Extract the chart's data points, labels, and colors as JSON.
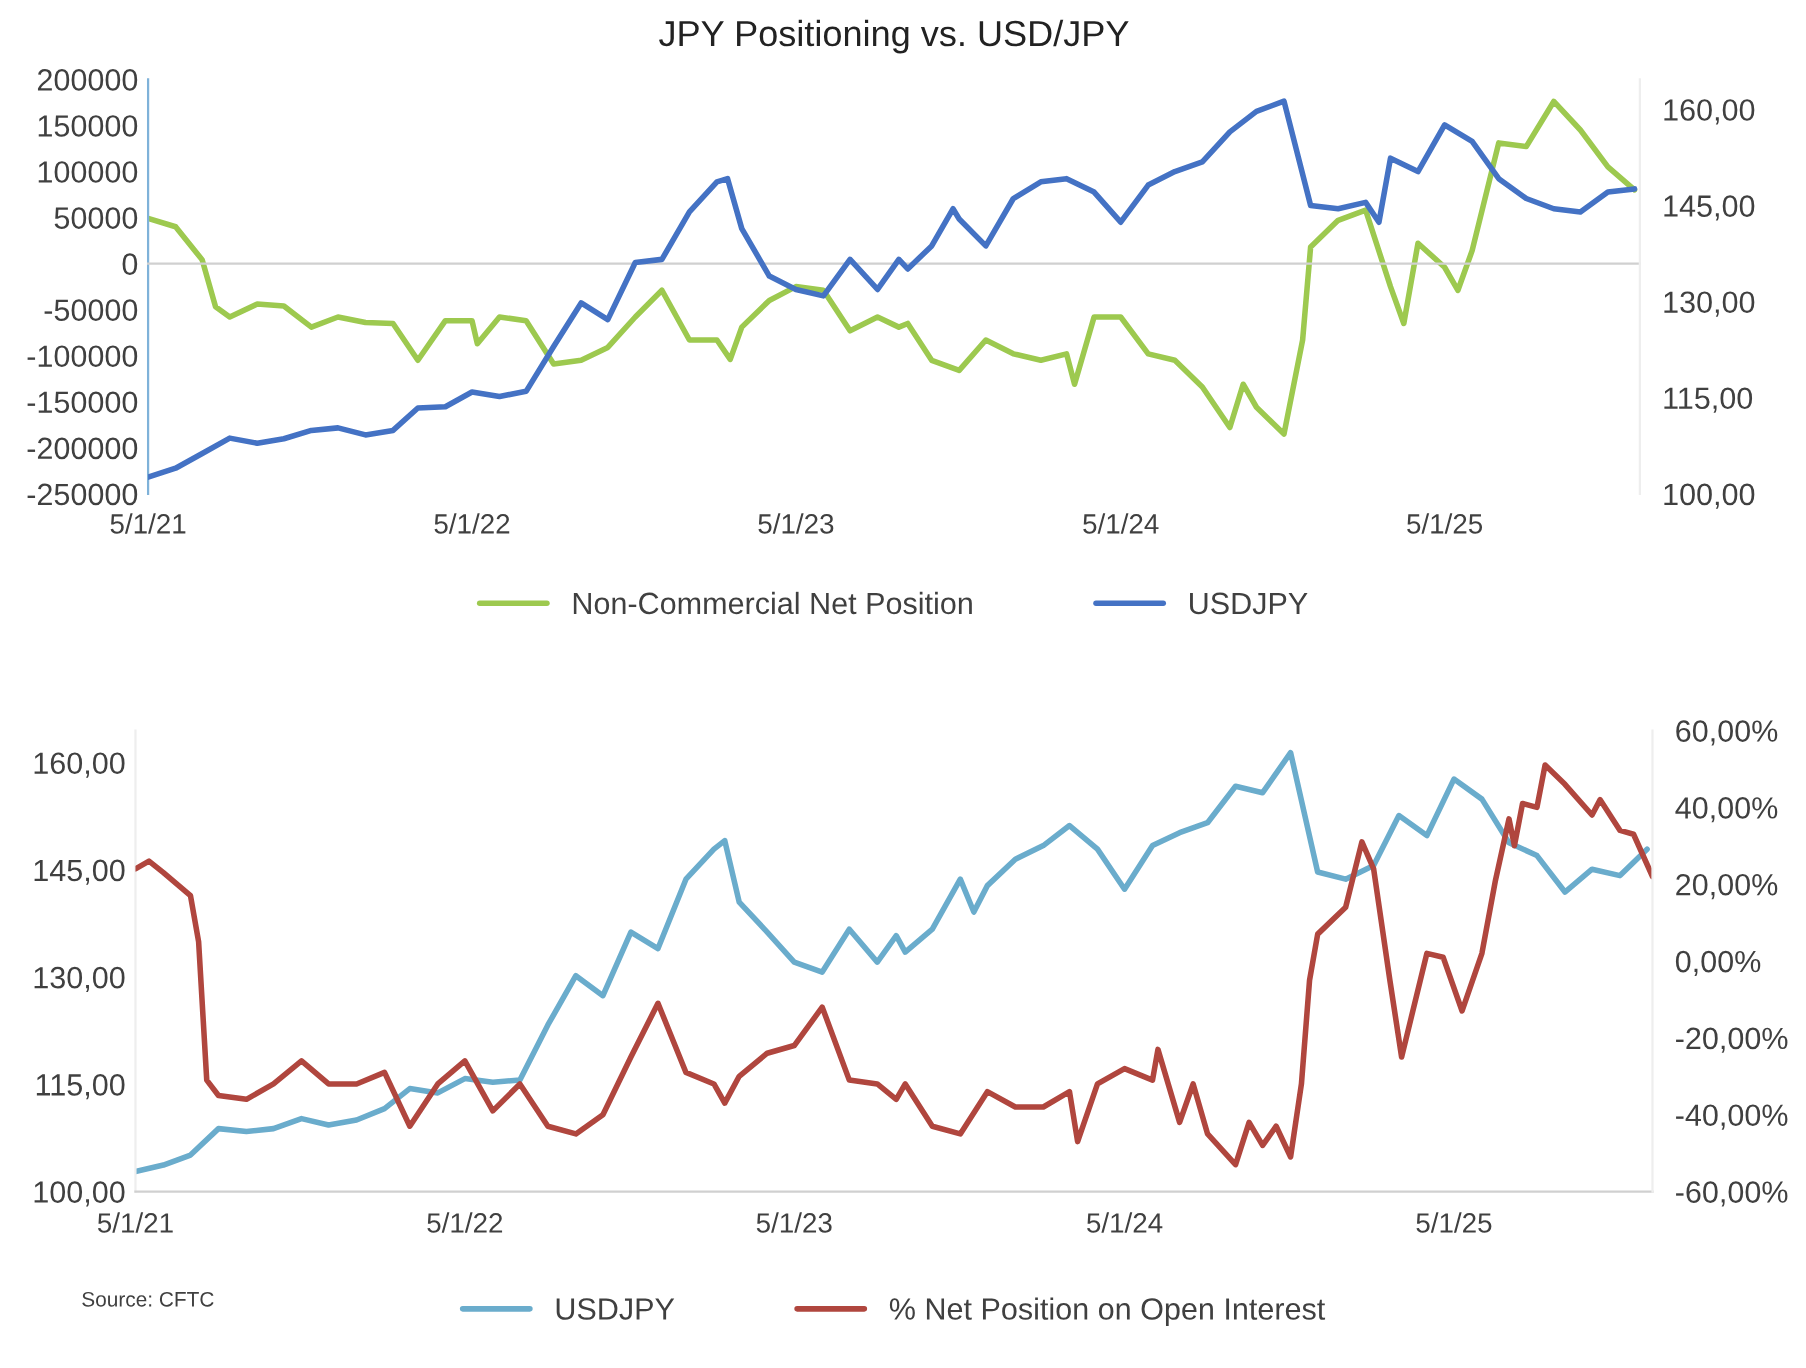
{
  "chart_data": [
    {
      "type": "line",
      "title": "JPY Positioning vs. USD/JPY",
      "legend": "bottom",
      "xlim": [
        "2021-05-01",
        "2025-12-07"
      ],
      "xticks": [
        {
          "value": "2021-05-01",
          "label": "5/1/21"
        },
        {
          "value": "2022-05-01",
          "label": "5/1/22"
        },
        {
          "value": "2023-05-01",
          "label": "5/1/23"
        },
        {
          "value": "2024-05-01",
          "label": "5/1/24"
        },
        {
          "value": "2025-05-01",
          "label": "5/1/25"
        }
      ],
      "ylim": [
        -250000,
        200000
      ],
      "yticks": [
        -250000,
        -200000,
        -150000,
        -100000,
        -50000,
        0,
        50000,
        100000,
        150000,
        200000
      ],
      "y2lim": [
        100,
        164.7
      ],
      "y2ticks": [
        {
          "value": 100,
          "label": "100,00"
        },
        {
          "value": 115,
          "label": "115,00"
        },
        {
          "value": 130,
          "label": "130,00"
        },
        {
          "value": 145,
          "label": "145,00"
        },
        {
          "value": 160,
          "label": "160,00"
        }
      ],
      "series": [
        {
          "name": "Non-Commercial Net Position",
          "color": "#9dc94f",
          "x": [
            "2021-05-01",
            "2021-06-01",
            "2021-07-01",
            "2021-07-16",
            "2021-08-01",
            "2021-09-01",
            "2021-10-01",
            "2021-11-01",
            "2021-12-01",
            "2022-01-01",
            "2022-02-01",
            "2022-03-01",
            "2022-04-01",
            "2022-05-01",
            "2022-05-07",
            "2022-06-01",
            "2022-07-01",
            "2022-08-01",
            "2022-09-01",
            "2022-10-01",
            "2022-11-01",
            "2022-12-01",
            "2023-01-01",
            "2023-02-01",
            "2023-02-16",
            "2023-03-01",
            "2023-04-01",
            "2023-05-01",
            "2023-06-01",
            "2023-07-01",
            "2023-08-01",
            "2023-08-25",
            "2023-09-04",
            "2023-10-01",
            "2023-11-01",
            "2023-12-01",
            "2024-01-01",
            "2024-02-01",
            "2024-03-01",
            "2024-03-10",
            "2024-04-01",
            "2024-05-01",
            "2024-06-01",
            "2024-07-01",
            "2024-08-01",
            "2024-09-01",
            "2024-09-16",
            "2024-10-01",
            "2024-11-01",
            "2024-11-22",
            "2024-12-01",
            "2025-01-01",
            "2025-02-01",
            "2025-03-01",
            "2025-03-16",
            "2025-04-01",
            "2025-05-01",
            "2025-05-16",
            "2025-06-01",
            "2025-07-01",
            "2025-08-01",
            "2025-09-01",
            "2025-10-01",
            "2025-11-01",
            "2025-12-01"
          ],
          "values": [
            49000,
            40000,
            4000,
            -47000,
            -58000,
            -44000,
            -46000,
            -69000,
            -58000,
            -64000,
            -65000,
            -105000,
            -62000,
            -62000,
            -87000,
            -58000,
            -62000,
            -109000,
            -105000,
            -91000,
            -58000,
            -29000,
            -83000,
            -83000,
            -104000,
            -69000,
            -40000,
            -25000,
            -29000,
            -73000,
            -58000,
            -69000,
            -65000,
            -105000,
            -116000,
            -83000,
            -98000,
            -105000,
            -98000,
            -131000,
            -58000,
            -58000,
            -98000,
            -105000,
            -134000,
            -178000,
            -131000,
            -156000,
            -185000,
            -83000,
            18000,
            47000,
            58000,
            -25000,
            -65000,
            22000,
            -4000,
            -29000,
            14000,
            131000,
            127000,
            176000,
            145000,
            105000,
            80000
          ]
        },
        {
          "name": "USDJPY",
          "color": "#4472c4",
          "axis": "y2",
          "x": [
            "2021-05-01",
            "2021-06-01",
            "2021-07-01",
            "2021-08-01",
            "2021-09-01",
            "2021-10-01",
            "2021-11-01",
            "2021-12-01",
            "2022-01-01",
            "2022-02-01",
            "2022-03-01",
            "2022-04-01",
            "2022-05-01",
            "2022-06-01",
            "2022-07-01",
            "2022-08-01",
            "2022-09-01",
            "2022-10-01",
            "2022-11-01",
            "2022-12-01",
            "2023-01-01",
            "2023-02-01",
            "2023-02-13",
            "2023-03-01",
            "2023-04-01",
            "2023-05-01",
            "2023-06-01",
            "2023-07-01",
            "2023-08-01",
            "2023-08-25",
            "2023-09-04",
            "2023-10-01",
            "2023-10-25",
            "2023-11-01",
            "2023-12-01",
            "2024-01-01",
            "2024-02-01",
            "2024-03-01",
            "2024-04-01",
            "2024-05-01",
            "2024-06-01",
            "2024-07-01",
            "2024-08-01",
            "2024-09-01",
            "2024-10-01",
            "2024-11-01",
            "2024-12-01",
            "2025-01-01",
            "2025-02-01",
            "2025-02-16",
            "2025-03-01",
            "2025-04-01",
            "2025-05-01",
            "2025-06-01",
            "2025-07-01",
            "2025-08-01",
            "2025-09-01",
            "2025-10-01",
            "2025-11-01",
            "2025-12-01"
          ],
          "values": [
            102.6,
            104.0,
            106.3,
            108.7,
            107.9,
            108.6,
            109.9,
            110.3,
            109.2,
            109.9,
            113.4,
            113.6,
            115.9,
            115.2,
            116.0,
            123.0,
            129.8,
            127.2,
            136.1,
            136.6,
            144.0,
            148.7,
            149.2,
            141.4,
            134.0,
            131.9,
            130.9,
            136.6,
            131.9,
            136.6,
            135.1,
            138.7,
            144.5,
            142.9,
            138.7,
            146.1,
            148.7,
            149.2,
            147.1,
            142.4,
            148.2,
            150.3,
            151.8,
            156.5,
            159.7,
            161.3,
            145.0,
            144.5,
            145.5,
            142.4,
            152.4,
            150.3,
            157.6,
            155.0,
            149.2,
            146.1,
            144.5,
            144.0,
            147.1,
            147.6
          ]
        }
      ]
    },
    {
      "type": "line",
      "legend": "bottom",
      "annotations": [
        "Source: CFTC"
      ],
      "xlim": [
        "2021-05-01",
        "2025-12-07"
      ],
      "xticks": [
        {
          "value": "2021-05-01",
          "label": "5/1/21"
        },
        {
          "value": "2022-05-01",
          "label": "5/1/22"
        },
        {
          "value": "2023-05-01",
          "label": "5/1/23"
        },
        {
          "value": "2024-05-01",
          "label": "5/1/24"
        },
        {
          "value": "2025-05-01",
          "label": "5/1/25"
        }
      ],
      "ylim": [
        100,
        164.5
      ],
      "yticks": [
        {
          "value": 100,
          "label": "100,00"
        },
        {
          "value": 115,
          "label": "115,00"
        },
        {
          "value": 130,
          "label": "130,00"
        },
        {
          "value": 145,
          "label": "145,00"
        },
        {
          "value": 160,
          "label": "160,00"
        }
      ],
      "y2lim": [
        -60,
        60
      ],
      "y2ticks": [
        {
          "value": -60,
          "label": "-60,00%"
        },
        {
          "value": -40,
          "label": "-40,00%"
        },
        {
          "value": -20,
          "label": "-20,00%"
        },
        {
          "value": 0,
          "label": "0,00%"
        },
        {
          "value": 20,
          "label": "20,00%"
        },
        {
          "value": 40,
          "label": "40,00%"
        },
        {
          "value": 60,
          "label": "60,00%"
        }
      ],
      "series": [
        {
          "name": "USDJPY",
          "color": "#6aaccc",
          "x": [
            "2021-05-01",
            "2021-06-01",
            "2021-07-01",
            "2021-08-01",
            "2021-09-01",
            "2021-10-01",
            "2021-11-01",
            "2021-12-01",
            "2022-01-01",
            "2022-02-01",
            "2022-03-01",
            "2022-04-01",
            "2022-05-01",
            "2022-06-01",
            "2022-07-01",
            "2022-08-01",
            "2022-09-01",
            "2022-10-01",
            "2022-11-01",
            "2022-12-01",
            "2023-01-01",
            "2023-02-01",
            "2023-02-13",
            "2023-03-01",
            "2023-04-01",
            "2023-05-01",
            "2023-06-01",
            "2023-07-01",
            "2023-08-01",
            "2023-08-22",
            "2023-09-01",
            "2023-10-01",
            "2023-11-01",
            "2023-11-16",
            "2023-12-01",
            "2024-01-01",
            "2024-02-01",
            "2024-03-01",
            "2024-04-01",
            "2024-05-01",
            "2024-06-01",
            "2024-07-01",
            "2024-08-01",
            "2024-09-01",
            "2024-10-01",
            "2024-11-01",
            "2024-12-01",
            "2025-01-01",
            "2025-02-01",
            "2025-03-01",
            "2025-04-01",
            "2025-05-01",
            "2025-06-01",
            "2025-07-01",
            "2025-08-01",
            "2025-09-01",
            "2025-10-01",
            "2025-11-01",
            "2025-12-01"
          ],
          "values": [
            102.8,
            103.7,
            105.1,
            108.8,
            108.4,
            108.8,
            110.2,
            109.3,
            110.0,
            111.6,
            114.4,
            113.8,
            115.8,
            115.3,
            115.6,
            123.3,
            130.2,
            127.4,
            136.3,
            134.0,
            143.7,
            147.9,
            149.1,
            140.5,
            136.3,
            132.1,
            130.7,
            136.7,
            132.1,
            135.8,
            133.5,
            136.7,
            143.7,
            139.1,
            142.8,
            146.5,
            148.4,
            151.2,
            147.9,
            142.3,
            148.4,
            150.2,
            151.6,
            156.7,
            155.8,
            161.4,
            144.7,
            143.7,
            145.6,
            152.6,
            149.8,
            157.7,
            154.9,
            148.8,
            147.0,
            141.9,
            145.1,
            144.2,
            147.9
          ]
        },
        {
          "name": "% Net Position on Open Interest",
          "color": "#b0463e",
          "axis": "y2",
          "x": [
            "2021-05-01",
            "2021-05-16",
            "2021-06-01",
            "2021-07-01",
            "2021-07-10",
            "2021-07-19",
            "2021-08-01",
            "2021-09-01",
            "2021-10-01",
            "2021-11-01",
            "2021-12-01",
            "2022-01-01",
            "2022-02-01",
            "2022-03-01",
            "2022-04-01",
            "2022-05-01",
            "2022-06-01",
            "2022-07-01",
            "2022-08-01",
            "2022-09-01",
            "2022-10-01",
            "2022-11-01",
            "2022-12-01",
            "2023-01-01",
            "2023-02-01",
            "2023-02-13",
            "2023-03-01",
            "2023-04-01",
            "2023-05-01",
            "2023-06-01",
            "2023-07-01",
            "2023-08-01",
            "2023-08-22",
            "2023-09-01",
            "2023-10-01",
            "2023-11-01",
            "2023-12-01",
            "2024-01-01",
            "2024-02-01",
            "2024-03-01",
            "2024-03-10",
            "2024-04-01",
            "2024-05-01",
            "2024-06-01",
            "2024-06-07",
            "2024-07-01",
            "2024-07-16",
            "2024-08-01",
            "2024-09-01",
            "2024-09-16",
            "2024-10-01",
            "2024-10-16",
            "2024-11-01",
            "2024-11-13",
            "2024-11-22",
            "2024-12-01",
            "2025-01-01",
            "2025-01-19",
            "2025-02-01",
            "2025-02-19",
            "2025-03-04",
            "2025-04-01",
            "2025-04-19",
            "2025-05-10",
            "2025-06-01",
            "2025-06-16",
            "2025-07-01",
            "2025-07-07",
            "2025-07-16",
            "2025-08-01",
            "2025-08-10",
            "2025-09-01",
            "2025-10-01",
            "2025-10-10",
            "2025-11-01",
            "2025-11-16",
            "2025-12-07"
          ],
          "values": [
            24,
            26,
            23,
            17,
            5,
            -31,
            -35,
            -36,
            -32,
            -26,
            -32,
            -32,
            -29,
            -43,
            -32,
            -26,
            -39,
            -32,
            -43,
            -45,
            -40,
            -25,
            -11,
            -29,
            -32,
            -37,
            -30,
            -24,
            -22,
            -12,
            -31,
            -32,
            -36,
            -32,
            -43,
            -45,
            -34,
            -38,
            -38,
            -34,
            -47,
            -32,
            -28,
            -31,
            -23,
            -42,
            -32,
            -45,
            -53,
            -42,
            -48,
            -43,
            -51,
            -32,
            -5,
            7,
            14,
            31,
            24,
            -5,
            -25,
            2,
            1,
            -13,
            2,
            21,
            37,
            30,
            41,
            40,
            51,
            46,
            38,
            42,
            34,
            33,
            22
          ]
        }
      ]
    }
  ]
}
